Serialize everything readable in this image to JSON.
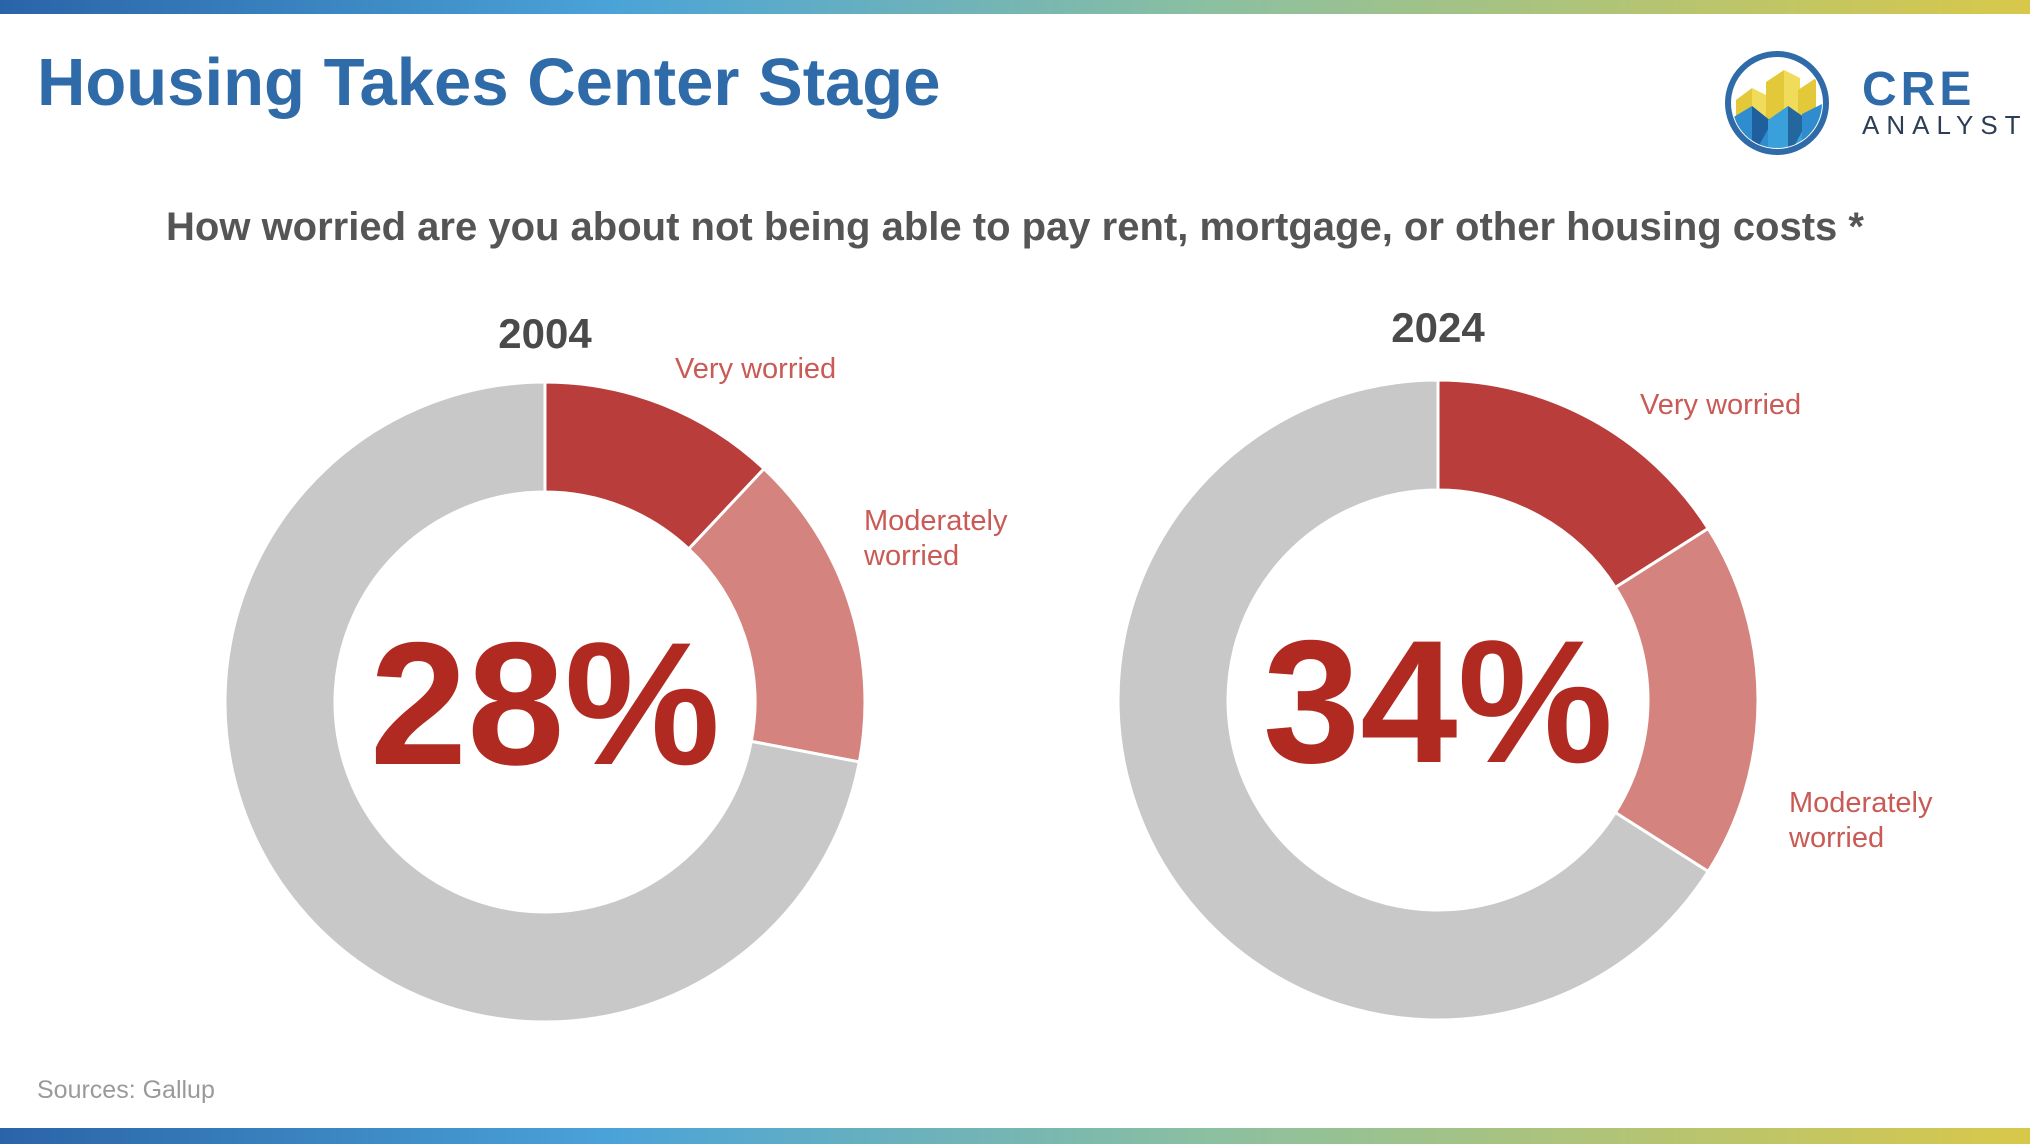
{
  "title": "Housing Takes Center Stage",
  "logo": {
    "name": "CRE",
    "tagline": "ANALYST"
  },
  "subtitle": "How worried are you about not being able to pay rent, mortgage, or other housing costs *",
  "sources": "Sources: Gallup",
  "colors": {
    "very_worried": "#b93d3b",
    "moderately_worried": "#d4837e",
    "rest": "#c8c8c8",
    "center_text": "#b02a22",
    "label_text": "#c95a55"
  },
  "chart_data": [
    {
      "type": "pie",
      "title": "2004",
      "center_label": "28%",
      "slices": [
        {
          "label": "Very worried",
          "value": 12
        },
        {
          "label": "Moderately worried",
          "value": 16
        },
        {
          "label": "",
          "value": 72
        }
      ]
    },
    {
      "type": "pie",
      "title": "2024",
      "center_label": "34%",
      "slices": [
        {
          "label": "Very worried",
          "value": 16
        },
        {
          "label": "Moderately worried",
          "value": 18
        },
        {
          "label": "",
          "value": 66
        }
      ]
    }
  ]
}
